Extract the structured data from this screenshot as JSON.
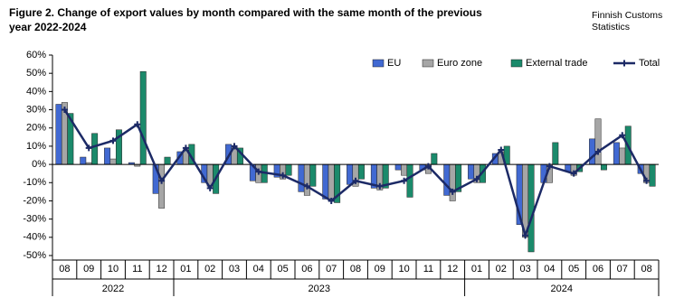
{
  "chart_data": {
    "type": "bar",
    "title_lines": [
      "Figure 2. Change of export values by month compared with the same month of the previous",
      "year 2022-2024"
    ],
    "source_lines": [
      "Finnish Customs",
      "Statistics"
    ],
    "categories": [
      "08",
      "09",
      "10",
      "11",
      "12",
      "01",
      "02",
      "03",
      "04",
      "05",
      "06",
      "07",
      "08",
      "09",
      "10",
      "11",
      "12",
      "01",
      "02",
      "03",
      "04",
      "05",
      "06",
      "07",
      "08"
    ],
    "category_groups": [
      "2022",
      "2022",
      "2022",
      "2022",
      "2022",
      "2023",
      "2023",
      "2023",
      "2023",
      "2023",
      "2023",
      "2023",
      "2023",
      "2023",
      "2023",
      "2023",
      "2023",
      "2024",
      "2024",
      "2024",
      "2024",
      "2024",
      "2024",
      "2024",
      "2024"
    ],
    "series": [
      {
        "name": "EU",
        "color": "#4169d2",
        "type": "bar",
        "values": [
          33,
          4,
          9,
          1,
          -16,
          7,
          -10,
          11,
          -9,
          -7,
          -15,
          -19,
          -11,
          -13,
          -3,
          -3,
          -17,
          -8,
          6,
          -33,
          -10,
          -4,
          14,
          12,
          -5
        ]
      },
      {
        "name": "Euro zone",
        "color": "#a6a6a6",
        "type": "bar",
        "values": [
          34,
          1,
          3,
          -1,
          -24,
          8,
          -12,
          10,
          -10,
          -8,
          -17,
          -20,
          -12,
          -14,
          -6,
          -5,
          -20,
          -10,
          7,
          -40,
          -10,
          -6,
          25,
          9,
          -10
        ]
      },
      {
        "name": "External trade",
        "color": "#1b8a6b",
        "type": "bar",
        "values": [
          28,
          17,
          19,
          51,
          4,
          11,
          -16,
          9,
          -10,
          -6,
          -12,
          -21,
          -8,
          -13,
          -18,
          6,
          -15,
          -10,
          10,
          -48,
          12,
          -4,
          -3,
          21,
          -12
        ]
      },
      {
        "name": "Total",
        "color": "#1c2a66",
        "type": "line",
        "values": [
          30,
          9,
          13,
          22,
          -9,
          9,
          -13,
          10,
          -4,
          -6,
          -12,
          -20,
          -9,
          -12,
          -9,
          -1,
          -15,
          -8,
          8,
          -39,
          -1,
          -5,
          7,
          16,
          -9
        ]
      }
    ],
    "ylim": [
      -50,
      60
    ],
    "yticks": [
      {
        "value": -50,
        "label": "-50%"
      },
      {
        "value": -40,
        "label": "-40%"
      },
      {
        "value": -30,
        "label": "-30%"
      },
      {
        "value": -20,
        "label": "-20%"
      },
      {
        "value": -10,
        "label": "-10%"
      },
      {
        "value": 0,
        "label": "0%"
      },
      {
        "value": 10,
        "label": "10%"
      },
      {
        "value": 20,
        "label": "20%"
      },
      {
        "value": 30,
        "label": "30%"
      },
      {
        "value": 40,
        "label": "40%"
      },
      {
        "value": 50,
        "label": "50%"
      },
      {
        "value": 60,
        "label": "60%"
      }
    ],
    "grid": false,
    "legend": "top-right"
  }
}
